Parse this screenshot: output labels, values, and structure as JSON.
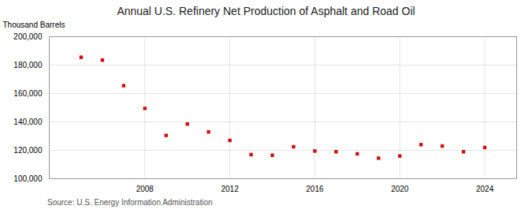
{
  "chart_data": {
    "type": "scatter",
    "title": "Annual U.S. Refinery Net Production of Asphalt and Road Oil",
    "ylabel": "Thousand Barrels",
    "annotation": "Source: U.S. Energy Information Administration",
    "x": [
      2005,
      2006,
      2007,
      2008,
      2009,
      2010,
      2011,
      2012,
      2013,
      2014,
      2015,
      2016,
      2017,
      2018,
      2019,
      2020,
      2021,
      2022,
      2023,
      2024
    ],
    "values": [
      185500,
      183500,
      165500,
      149500,
      130500,
      138500,
      133000,
      127000,
      117000,
      116500,
      122500,
      119500,
      119000,
      117500,
      114500,
      116000,
      124000,
      123000,
      119000,
      122000
    ],
    "color": "#cc1111",
    "marker": "square",
    "xlim": [
      2003.5,
      2025.5
    ],
    "xticks": [
      2008,
      2012,
      2016,
      2020,
      2024
    ],
    "ylim": [
      100000,
      200000
    ],
    "yticks": [
      {
        "value": 100000,
        "label": "100,000"
      },
      {
        "value": 120000,
        "label": "120,000"
      },
      {
        "value": 140000,
        "label": "140,000"
      },
      {
        "value": 160000,
        "label": "160,000"
      },
      {
        "value": 180000,
        "label": "180,000"
      },
      {
        "value": 200000,
        "label": "200,000"
      }
    ],
    "grid": true
  }
}
